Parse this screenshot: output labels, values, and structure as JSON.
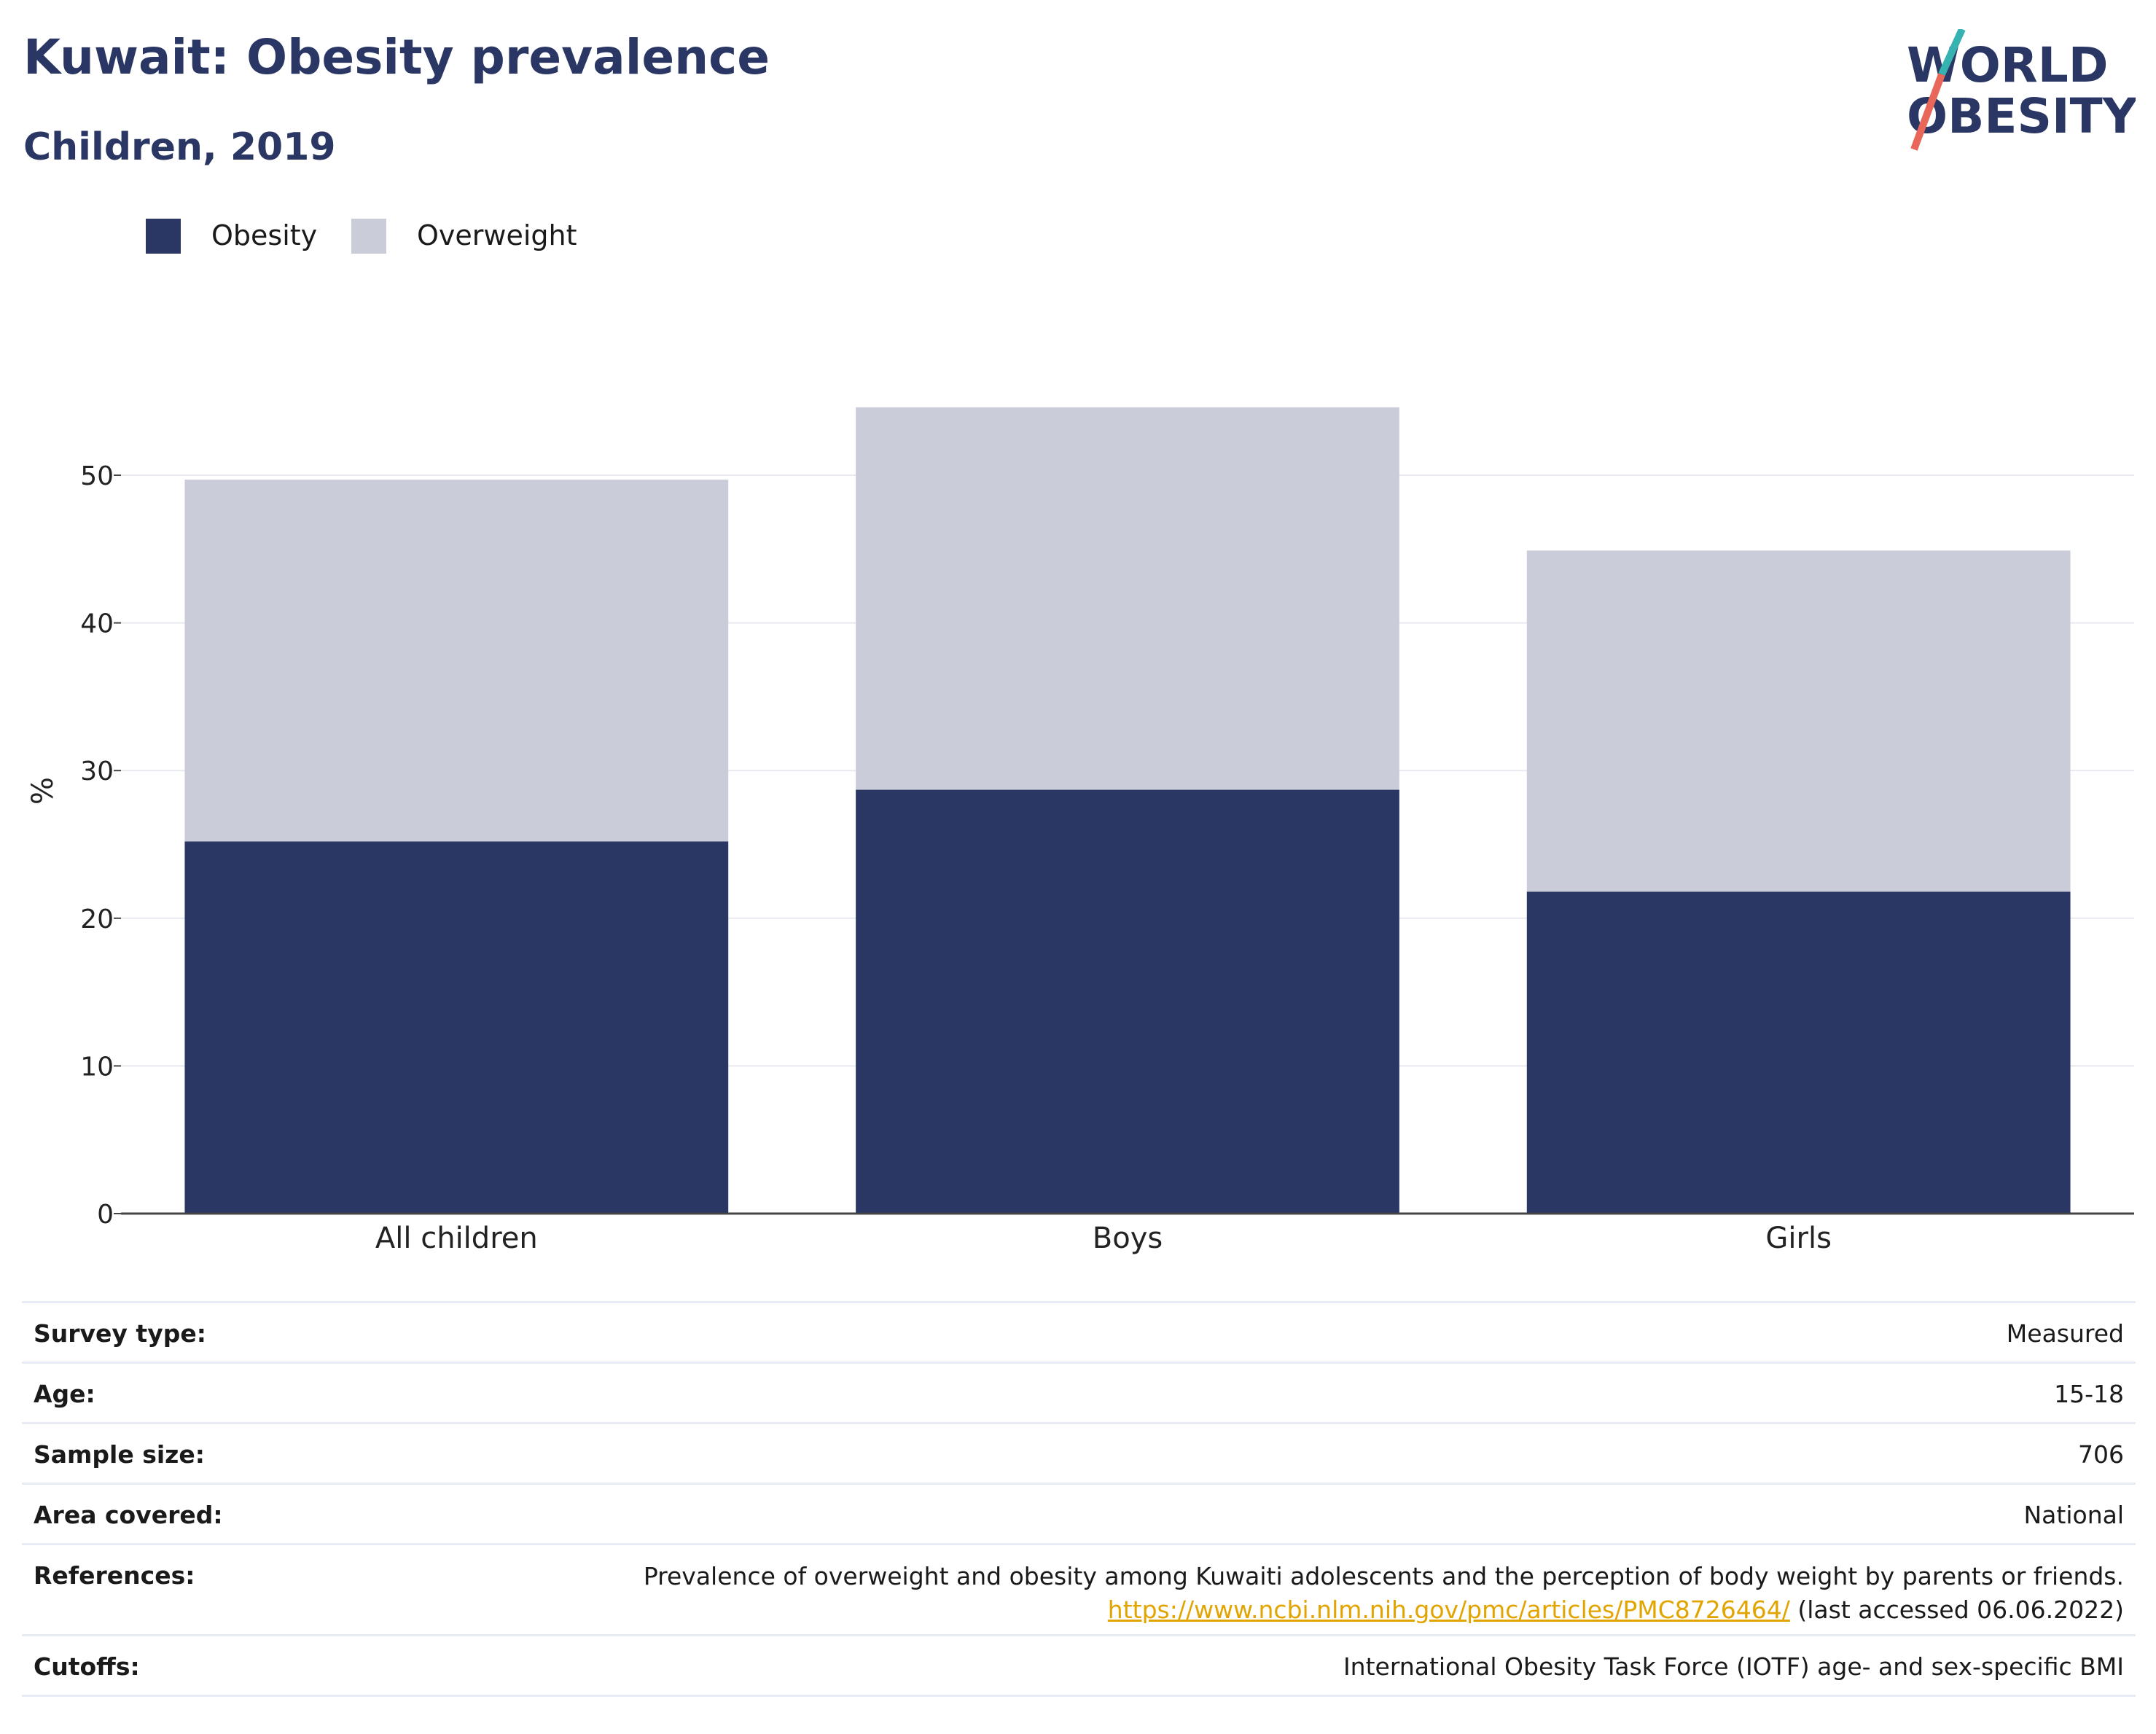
{
  "header": {
    "title": "Kuwait: Obesity prevalence",
    "subtitle": "Children, 2019"
  },
  "logo": {
    "line1": "WORLD",
    "line2": "OBESITY",
    "icon": "world-obesity-logo"
  },
  "legend": [
    {
      "label": "Obesity",
      "color": "#2a3663"
    },
    {
      "label": "Overweight",
      "color": "#cacdd9"
    }
  ],
  "chart_data": {
    "type": "bar",
    "stacked": true,
    "categories": [
      "All children",
      "Boys",
      "Girls"
    ],
    "series": [
      {
        "name": "Obesity",
        "values": [
          25.2,
          28.7,
          21.8
        ],
        "color": "#2a3663"
      },
      {
        "name": "Overweight",
        "values": [
          24.5,
          25.9,
          23.1
        ],
        "color": "#cacdd9"
      }
    ],
    "ylabel": "%",
    "ylim": [
      0,
      56
    ],
    "yticks": [
      0,
      10,
      20,
      30,
      40,
      50
    ],
    "grid": true,
    "legend_position": "top-left"
  },
  "info": [
    {
      "key": "Survey type:",
      "value": "Measured"
    },
    {
      "key": "Age:",
      "value": "15-18"
    },
    {
      "key": "Sample size:",
      "value": "706"
    },
    {
      "key": "Area covered:",
      "value": "National"
    },
    {
      "key": "References:",
      "value": "Prevalence of overweight and obesity among Kuwaiti adolescents and the perception of body weight by parents or friends.",
      "link": "https://www.ncbi.nlm.nih.gov/pmc/articles/PMC8726464/",
      "note": " (last accessed 06.06.2022)"
    },
    {
      "key": "Cutoffs:",
      "value": "International Obesity Task Force (IOTF) age- and sex-specific BMI"
    }
  ]
}
